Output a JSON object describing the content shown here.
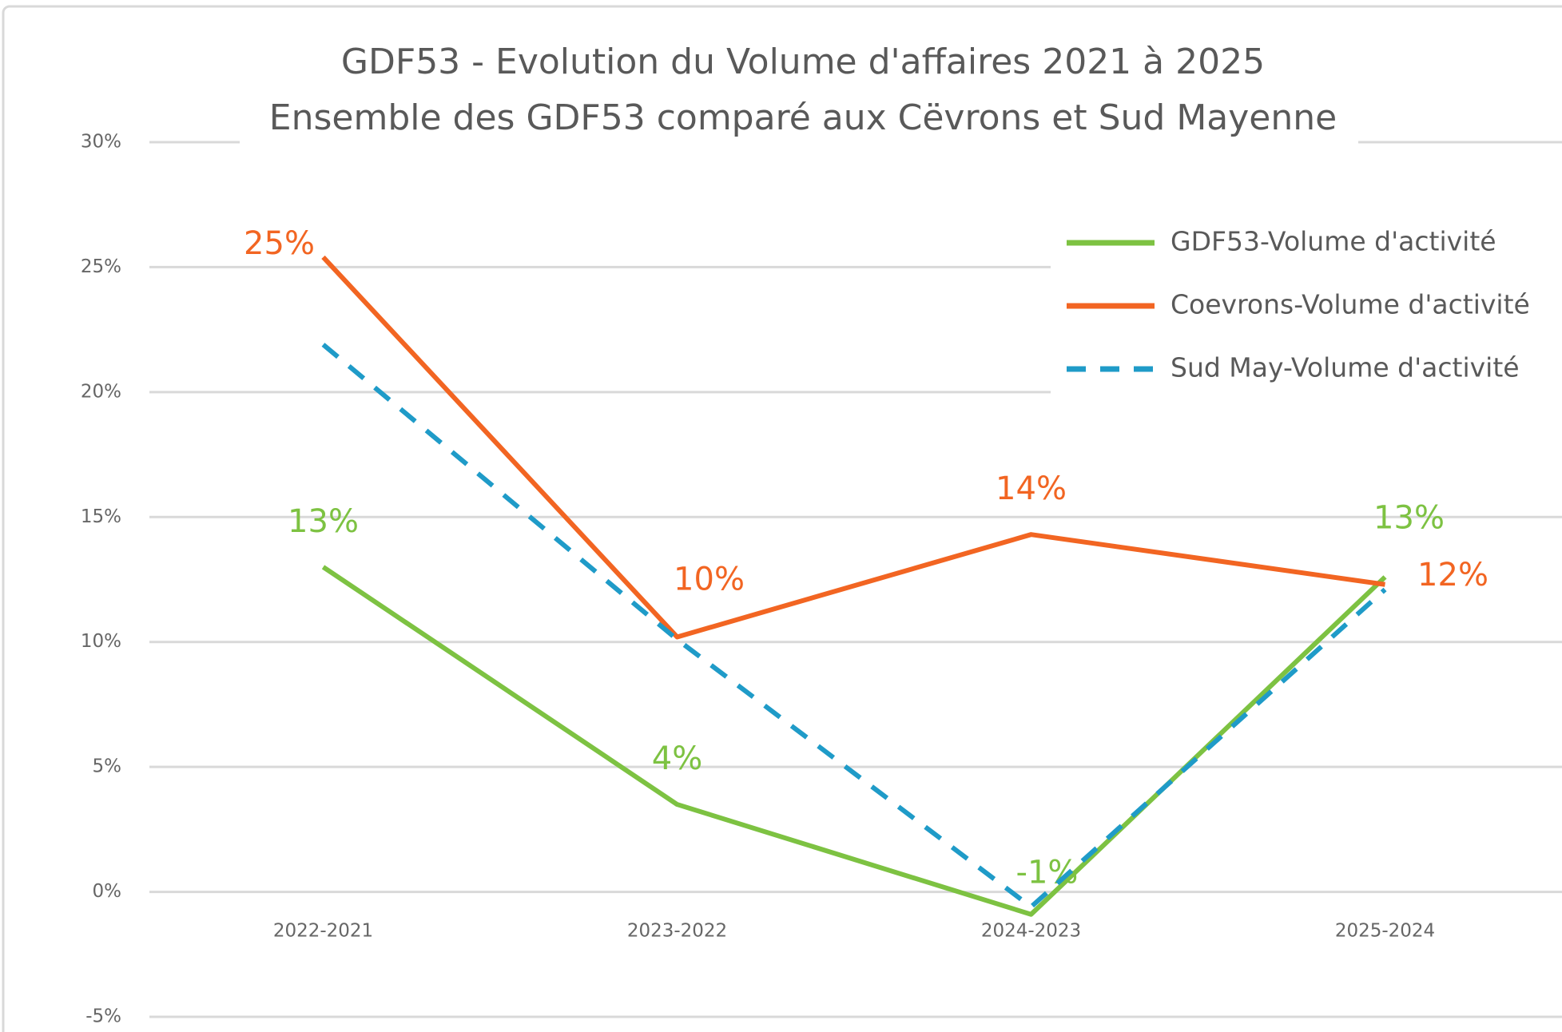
{
  "chart_data": {
    "type": "line",
    "title": "GDF53 - Evolution du Volume d'affaires 2021 à 2025",
    "subtitle": "Ensemble des GDF53 comparé aux Cëvrons et Sud Mayenne",
    "categories": [
      "2022-2021",
      "2023-2022",
      "2024-2023",
      "2025-2024"
    ],
    "series": [
      {
        "name": "GDF53-Volume d'activité",
        "color": "#7dc242",
        "line_style": "solid",
        "values": [
          13,
          3.5,
          -0.9,
          12.6
        ],
        "value_labels": [
          "13%",
          "4%",
          "-1%",
          "13%"
        ]
      },
      {
        "name": "Coevrons-Volume d'activité",
        "color": "#f26522",
        "line_style": "solid",
        "values": [
          25.4,
          10.2,
          14.3,
          12.3
        ],
        "value_labels": [
          "25%",
          "10%",
          "14%",
          "12%"
        ]
      },
      {
        "name": "Sud May-Volume d'activité",
        "color": "#1f9bc8",
        "line_style": "dashed",
        "values": [
          21.9,
          10.1,
          -0.6,
          12.1
        ]
      }
    ],
    "ylim": [
      -5,
      30
    ],
    "yticks": [
      {
        "value": -5,
        "label": "-5%"
      },
      {
        "value": 0,
        "label": "0%"
      },
      {
        "value": 5,
        "label": "5%"
      },
      {
        "value": 10,
        "label": "10%"
      },
      {
        "value": 15,
        "label": "15%"
      },
      {
        "value": 20,
        "label": "20%"
      },
      {
        "value": 25,
        "label": "25%"
      },
      {
        "value": 30,
        "label": "30%"
      }
    ],
    "grid": true,
    "legend": "upper right"
  }
}
